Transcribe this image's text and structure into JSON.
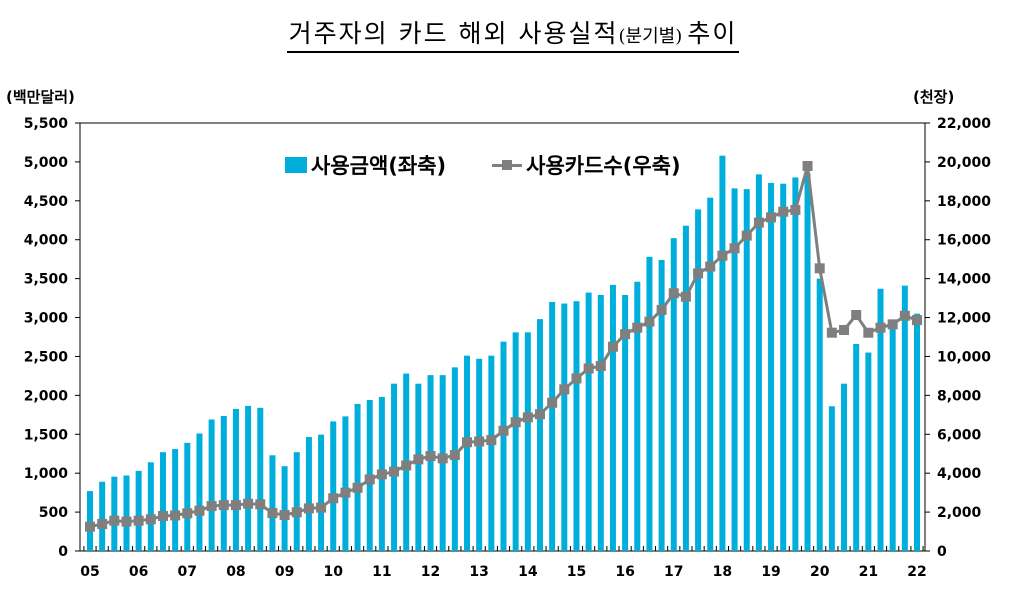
{
  "chart_data": {
    "type": "bar+line",
    "title_main": "거주자의 카드 해외 사용실적",
    "title_sub": "(분기별)",
    "title_end": "추이",
    "ylabel_left": "(백만달러)",
    "ylabel_right": "(천장)",
    "ylim_left": [
      0,
      5500
    ],
    "ylim_right": [
      0,
      22000
    ],
    "yticks_left": [
      "0",
      "500",
      "1,000",
      "1,500",
      "2,000",
      "2,500",
      "3,000",
      "3,500",
      "4,000",
      "4,500",
      "5,000",
      "5,500"
    ],
    "yticks_right": [
      "0",
      "2,000",
      "4,000",
      "6,000",
      "8,000",
      "10,000",
      "12,000",
      "14,000",
      "16,000",
      "18,000",
      "20,000",
      "22,000"
    ],
    "xtick_labels": [
      "05",
      "06",
      "07",
      "08",
      "09",
      "10",
      "11",
      "12",
      "13",
      "14",
      "15",
      "16",
      "17",
      "18",
      "19",
      "20",
      "21",
      "22"
    ],
    "legend_placement": "top-center",
    "colors": {
      "bar": "#00AEDB",
      "line": "#7F7F7F"
    },
    "series": [
      {
        "name": "사용금액(좌축)",
        "type": "bar",
        "axis": "left",
        "values": [
          770,
          890,
          955,
          970,
          1030,
          1140,
          1270,
          1310,
          1390,
          1510,
          1690,
          1735,
          1825,
          1865,
          1840,
          1230,
          1090,
          1270,
          1465,
          1495,
          1665,
          1730,
          1890,
          1940,
          1980,
          2150,
          2280,
          2150,
          2260,
          2260,
          2360,
          2510,
          2470,
          2510,
          2690,
          2810,
          2810,
          2980,
          3200,
          3180,
          3210,
          3320,
          3290,
          3420,
          3290,
          3460,
          3780,
          3740,
          4020,
          4180,
          4390,
          4540,
          5080,
          4660,
          4650,
          4840,
          4730,
          4720,
          4800,
          4850,
          3500,
          1860,
          2150,
          2660,
          2550,
          3370,
          2900,
          3410,
          3050
        ]
      },
      {
        "name": "사용카드수(우축)",
        "type": "line",
        "axis": "right",
        "values": [
          1250,
          1390,
          1560,
          1510,
          1560,
          1630,
          1800,
          1830,
          1940,
          2070,
          2310,
          2360,
          2360,
          2430,
          2400,
          1950,
          1850,
          1990,
          2190,
          2230,
          2710,
          3000,
          3250,
          3680,
          3940,
          4080,
          4400,
          4710,
          4880,
          4760,
          4930,
          5590,
          5630,
          5700,
          6180,
          6620,
          6870,
          7030,
          7620,
          8310,
          8870,
          9380,
          9510,
          10500,
          11150,
          11480,
          11790,
          12390,
          13250,
          13070,
          14270,
          14620,
          15180,
          15560,
          16210,
          16880,
          17150,
          17440,
          17530,
          19790,
          14530,
          11220,
          11360,
          12130,
          11220,
          11480,
          11650,
          12090,
          11870
        ]
      }
    ]
  }
}
